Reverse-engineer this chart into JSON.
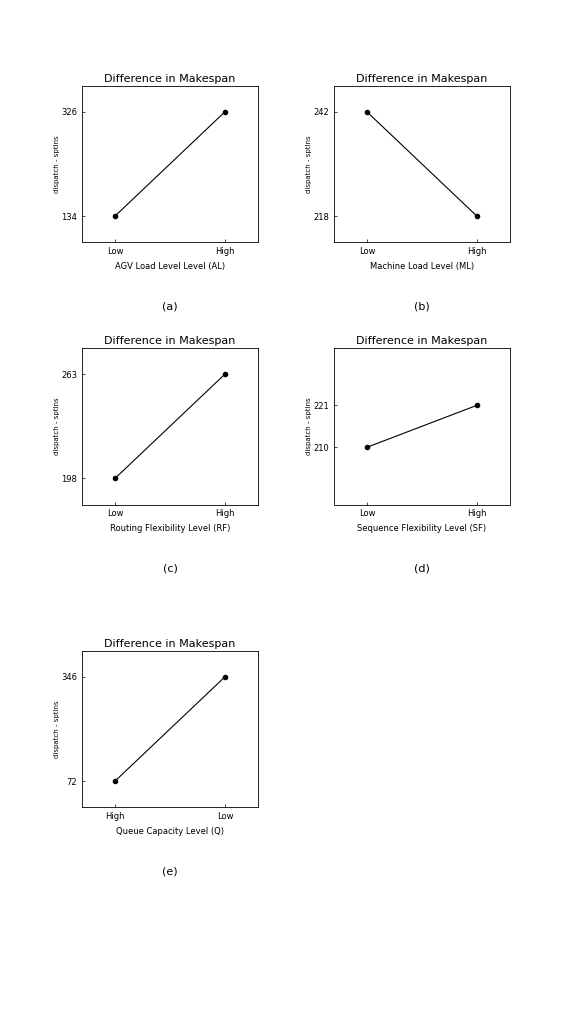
{
  "plots": [
    {
      "title": "Difference in Makespan",
      "xlabel": "AGV Load Level Level (AL)",
      "x_labels": [
        "Low",
        "High"
      ],
      "y_values": [
        134,
        326
      ],
      "yticks": [
        134,
        326
      ],
      "ylabel": "dispatch - sptlns",
      "subplot_label": "(a)"
    },
    {
      "title": "Difference in Makespan",
      "xlabel": "Machine Load Level (ML)",
      "x_labels": [
        "Low",
        "High"
      ],
      "y_values": [
        242,
        218
      ],
      "yticks": [
        218,
        242
      ],
      "ylabel": "dispatch - sptlns",
      "subplot_label": "(b)"
    },
    {
      "title": "Difference in Makespan",
      "xlabel": "Routing Flexibility Level (RF)",
      "x_labels": [
        "Low",
        "High"
      ],
      "y_values": [
        198,
        263
      ],
      "yticks": [
        198,
        263
      ],
      "ylabel": "dispatch - sptlns",
      "subplot_label": "(c)"
    },
    {
      "title": "Difference in Makespan",
      "xlabel": "Sequence Flexibility Level (SF)",
      "x_labels": [
        "Low",
        "High"
      ],
      "y_values": [
        210,
        221
      ],
      "yticks": [
        210,
        221
      ],
      "ylabel": "dispatch - sptlns",
      "subplot_label": "(d)"
    },
    {
      "title": "Difference in Makespan",
      "xlabel": "Queue Capacity Level (Q)",
      "x_labels": [
        "High",
        "Low"
      ],
      "y_values": [
        72,
        346
      ],
      "yticks": [
        72,
        346
      ],
      "ylabel": "dispatch - sptlns",
      "subplot_label": "(e)"
    }
  ],
  "line_color": "#000000",
  "marker": "o",
  "markersize": 3,
  "title_fontsize": 8,
  "label_fontsize": 6,
  "tick_fontsize": 6,
  "ylabel_fontsize": 5,
  "subplot_label_fontsize": 8,
  "bg_color": "#ffffff"
}
